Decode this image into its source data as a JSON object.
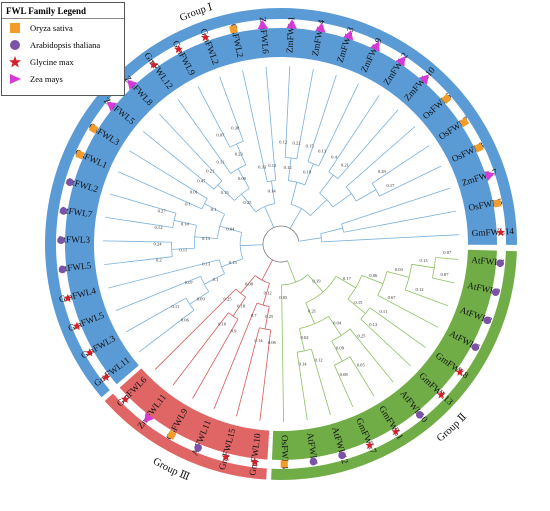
{
  "legend": {
    "title": "FWL Family Legend",
    "items": [
      {
        "label": "Oryza sativa",
        "shape": "square",
        "color": "#f39c2c"
      },
      {
        "label": "Arabidopsis thaliana",
        "shape": "circle",
        "color": "#7a52a6"
      },
      {
        "label": "Glycine max",
        "shape": "star",
        "color": "#d4202a"
      },
      {
        "label": "Zea mays",
        "shape": "triangle",
        "color": "#d63ad6"
      }
    ]
  },
  "colors": {
    "group1": "#5b9bd5",
    "group2": "#70ad47",
    "group3": "#e06666",
    "branch1": "#7ab0dc",
    "branch2": "#8fc064",
    "branch3": "#d65a5a"
  },
  "groups": [
    {
      "key": "group1",
      "label": "Group Ⅰ"
    },
    {
      "key": "group2",
      "label": "Group Ⅱ"
    },
    {
      "key": "group3",
      "label": "Group Ⅲ"
    }
  ],
  "leaves": [
    {
      "label": "AtFWL4",
      "species": "circle",
      "group": "group2"
    },
    {
      "label": "AtFWL9",
      "species": "circle",
      "group": "group2"
    },
    {
      "label": "AtFWL8",
      "species": "circle",
      "group": "group2"
    },
    {
      "label": "AtFWL6",
      "species": "circle",
      "group": "group2"
    },
    {
      "label": "GmFWL8",
      "species": "star",
      "group": "group2"
    },
    {
      "label": "GmFWL13",
      "species": "star",
      "group": "group2"
    },
    {
      "label": "AtFWL10",
      "species": "circle",
      "group": "group2"
    },
    {
      "label": "GmFWL1",
      "species": "star",
      "group": "group2"
    },
    {
      "label": "GmFWL7",
      "species": "star",
      "group": "group2"
    },
    {
      "label": "AtFWL12",
      "species": "circle",
      "group": "group2"
    },
    {
      "label": "AtFWL1",
      "species": "circle",
      "group": "group2"
    },
    {
      "label": "OsFWL4",
      "species": "square",
      "group": "group2"
    },
    {
      "label": "GmFWL10",
      "species": "star",
      "group": "group3"
    },
    {
      "label": "GmFWL15",
      "species": "star",
      "group": "group3"
    },
    {
      "label": "AtFWL11",
      "species": "circle",
      "group": "group3"
    },
    {
      "label": "OsFWL9",
      "species": "square",
      "group": "group3"
    },
    {
      "label": "ZmFWL11",
      "species": "triangle",
      "group": "group3"
    },
    {
      "label": "GmFWL6",
      "species": "star",
      "group": "group3"
    },
    {
      "label": "GmFWL11",
      "species": "star",
      "group": "group1"
    },
    {
      "label": "GmFWL3",
      "species": "star",
      "group": "group1"
    },
    {
      "label": "GmFWL5",
      "species": "star",
      "group": "group1"
    },
    {
      "label": "GmFWL4",
      "species": "star",
      "group": "group1"
    },
    {
      "label": "AtFWL5",
      "species": "circle",
      "group": "group1"
    },
    {
      "label": "AtFWL3",
      "species": "circle",
      "group": "group1"
    },
    {
      "label": "AtFWL7",
      "species": "circle",
      "group": "group1"
    },
    {
      "label": "AtFWL2",
      "species": "circle",
      "group": "group1"
    },
    {
      "label": "OsFWL1",
      "species": "square",
      "group": "group1"
    },
    {
      "label": "OsFWL3",
      "species": "square",
      "group": "group1"
    },
    {
      "label": "ZmFWL5",
      "species": "triangle",
      "group": "group1"
    },
    {
      "label": "ZmFWL8",
      "species": "triangle",
      "group": "group1"
    },
    {
      "label": "GmFWL12",
      "species": "star",
      "group": "group1"
    },
    {
      "label": "GmFWL9",
      "species": "star",
      "group": "group1"
    },
    {
      "label": "GmFWL2",
      "species": "star",
      "group": "group1"
    },
    {
      "label": "OsFWL2",
      "species": "square",
      "group": "group1"
    },
    {
      "label": "ZmFWL6",
      "species": "triangle",
      "group": "group1"
    },
    {
      "label": "ZmFWL1",
      "species": "triangle",
      "group": "group1"
    },
    {
      "label": "ZmFWL4",
      "species": "triangle",
      "group": "group1"
    },
    {
      "label": "ZmFWL3",
      "species": "triangle",
      "group": "group1"
    },
    {
      "label": "ZmFWL9",
      "species": "triangle",
      "group": "group1"
    },
    {
      "label": "ZmFWL2",
      "species": "triangle",
      "group": "group1"
    },
    {
      "label": "ZmFWL10",
      "species": "triangle",
      "group": "group1"
    },
    {
      "label": "OsFWL6",
      "species": "square",
      "group": "group1"
    },
    {
      "label": "OsFWL7",
      "species": "square",
      "group": "group1"
    },
    {
      "label": "OsFWL8",
      "species": "square",
      "group": "group1"
    },
    {
      "label": "ZmFWL7",
      "species": "triangle",
      "group": "group1"
    },
    {
      "label": "OsFWL5",
      "species": "square",
      "group": "group1"
    },
    {
      "label": "GmFWL14",
      "species": "star",
      "group": "group1"
    }
  ],
  "branch_values": [
    "0.07",
    "0.87",
    "0.13",
    "0.12",
    "0.03",
    "0.67",
    "0.11",
    "0.13",
    "0.06",
    "0.15",
    "0.05",
    "0.08",
    "0.25",
    "0.09",
    "0.12",
    "0.14",
    "0.04",
    "0.02",
    "0.17",
    "0.21",
    "0.19",
    "0.05",
    "0.06",
    "0.14",
    "0.25",
    "0.7",
    "0.9",
    "0.16",
    "0.18",
    "0.25",
    "0.12",
    "0.08",
    "0.06",
    "0.11",
    "0.09",
    "0.07",
    "0.1",
    "0.13",
    "0.2",
    "0.24",
    "0.12",
    "0.27",
    "0.11",
    "0.14",
    "0.1",
    "0.01",
    "0.13",
    "0.1",
    "0.15",
    "0.04",
    "0.47",
    "0.21",
    "0.07",
    "0.38",
    "0.11",
    "0.23",
    "0.15",
    "0.09",
    "0.33",
    "0.12",
    "0.25",
    "0.14",
    "0.12",
    "0.22",
    "0.15",
    "0.13",
    "0.12",
    "0.19",
    "0.4",
    "0.21",
    "0.29",
    "0.17"
  ]
}
